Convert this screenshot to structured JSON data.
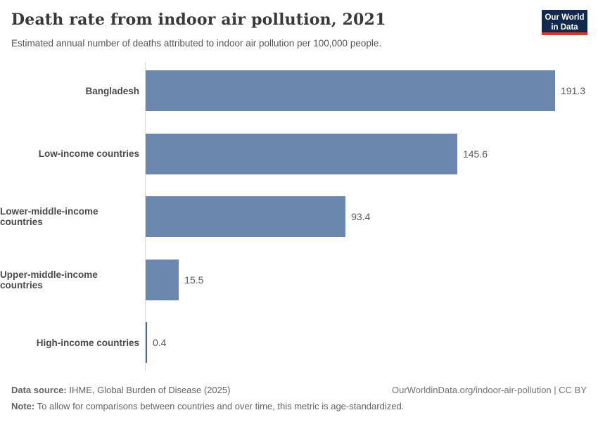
{
  "header": {
    "title": "Death rate from indoor air pollution, 2021",
    "subtitle": "Estimated annual number of deaths attributed to indoor air pollution per 100,000 people.",
    "logo_line1": "Our World",
    "logo_line2": "in Data"
  },
  "chart_data": {
    "type": "bar",
    "orientation": "horizontal",
    "title": "Death rate from indoor air pollution, 2021",
    "categories": [
      "Bangladesh",
      "Low-income countries",
      "Lower-middle-income countries",
      "Upper-middle-income countries",
      "High-income countries"
    ],
    "values": [
      191.3,
      145.6,
      93.4,
      15.5,
      0.4
    ],
    "value_labels": [
      "191.3",
      "145.6",
      "93.4",
      "15.5",
      "0.4"
    ],
    "xlim": [
      0,
      191.3
    ],
    "xlabel": "",
    "ylabel": "",
    "grid": false,
    "legend": "none"
  },
  "colors": {
    "bar": "#6C87AD",
    "bar_thin": "#50699B",
    "axis_line": "#DDDDDD",
    "title_text": "#383838",
    "subtitle_text": "#555555",
    "category_label": "#4A4A4A",
    "value_label": "#5A5A5A",
    "logo_background": "#12294D",
    "logo_accent": "#D7382A"
  },
  "footer": {
    "datasource_label": "Data source:",
    "datasource_text": " IHME, Global Burden of Disease (2025)",
    "link_text": "OurWorldinData.org/indoor-air-pollution | CC BY",
    "note_label": "Note:",
    "note_text": " To allow for comparisons between countries and over time, this metric is age-standardized."
  }
}
